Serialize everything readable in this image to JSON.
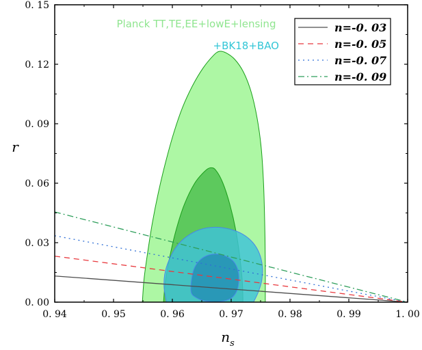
{
  "chart_data": {
    "type": "line",
    "xlabel": "n",
    "xlabel_sub": "s",
    "ylabel": "r",
    "xlim": [
      0.94,
      1.0
    ],
    "ylim": [
      0.0,
      0.15
    ],
    "x_ticks": [
      0.94,
      0.95,
      0.96,
      0.97,
      0.98,
      0.99,
      1.0
    ],
    "x_tick_labels": [
      "0. 94",
      "0. 95",
      "0. 96",
      "0. 97",
      "0. 98",
      "0. 99",
      "1. 00"
    ],
    "y_ticks": [
      0.0,
      0.03,
      0.06,
      0.09,
      0.12,
      0.15
    ],
    "y_tick_labels": [
      "0. 00",
      "0. 03",
      "0. 06",
      "0. 09",
      "0. 12",
      "0. 15"
    ],
    "grid": false,
    "legend_position": "top-right",
    "series": [
      {
        "name": "n=-0. 03",
        "color": "#4d4d4d",
        "dash": "solid",
        "x": [
          0.94,
          1.0
        ],
        "y": [
          0.0132,
          0.0
        ]
      },
      {
        "name": "n=-0. 05",
        "color": "#e8383d",
        "dash": "dashed",
        "x": [
          0.94,
          1.0
        ],
        "y": [
          0.0232,
          0.0
        ]
      },
      {
        "name": "n=-0. 07",
        "color": "#2f6fd6",
        "dash": "dotted",
        "x": [
          0.94,
          1.0
        ],
        "y": [
          0.0335,
          0.0
        ]
      },
      {
        "name": "n=-0. 09",
        "color": "#2e9e5b",
        "dash": "dashdot",
        "x": [
          0.94,
          1.0
        ],
        "y": [
          0.0455,
          0.0
        ]
      }
    ],
    "contours": [
      {
        "name": "Planck TT,TE,EE+lowE+lensing",
        "label_color": "#8fe58f",
        "regions": [
          {
            "level": "95%",
            "fill": "#adf7a4",
            "stroke": "#1a9e1a",
            "points": [
              [
                0.9549,
                0.0
              ],
              [
                0.9552,
                0.012
              ],
              [
                0.9558,
                0.025
              ],
              [
                0.9566,
                0.04
              ],
              [
                0.9576,
                0.055
              ],
              [
                0.9588,
                0.07
              ],
              [
                0.9602,
                0.085
              ],
              [
                0.9617,
                0.098
              ],
              [
                0.9634,
                0.109
              ],
              [
                0.9652,
                0.118
              ],
              [
                0.967,
                0.1245
              ],
              [
                0.968,
                0.1265
              ],
              [
                0.9691,
                0.1258
              ],
              [
                0.9706,
                0.1225
              ],
              [
                0.9721,
                0.116
              ],
              [
                0.9734,
                0.106
              ],
              [
                0.9744,
                0.093
              ],
              [
                0.9751,
                0.078
              ],
              [
                0.9755,
                0.06
              ],
              [
                0.9757,
                0.04
              ],
              [
                0.9758,
                0.02
              ],
              [
                0.9758,
                0.0
              ]
            ]
          },
          {
            "level": "68%",
            "fill": "#5dc95d",
            "stroke": "#1a9e1a",
            "points": [
              [
                0.9585,
                0.0
              ],
              [
                0.9588,
                0.01
              ],
              [
                0.9595,
                0.022
              ],
              [
                0.9606,
                0.036
              ],
              [
                0.962,
                0.049
              ],
              [
                0.9638,
                0.06
              ],
              [
                0.9655,
                0.066
              ],
              [
                0.9665,
                0.0678
              ],
              [
                0.9674,
                0.0665
              ],
              [
                0.9686,
                0.06
              ],
              [
                0.9698,
                0.049
              ],
              [
                0.9708,
                0.036
              ],
              [
                0.9715,
                0.022
              ],
              [
                0.9719,
                0.01
              ],
              [
                0.972,
                0.0
              ]
            ]
          }
        ]
      },
      {
        "name": "+BK18+BAO",
        "label_color": "#33c6d6",
        "regions": [
          {
            "level": "95%",
            "fill": "#3ec2d8",
            "stroke": "#4a86e8",
            "opacity": 0.82,
            "points": [
              [
                0.959,
                0.0
              ],
              [
                0.9586,
                0.007
              ],
              [
                0.9587,
                0.014
              ],
              [
                0.9594,
                0.021
              ],
              [
                0.9607,
                0.028
              ],
              [
                0.9624,
                0.033
              ],
              [
                0.9646,
                0.0365
              ],
              [
                0.9672,
                0.0378
              ],
              [
                0.9698,
                0.0368
              ],
              [
                0.972,
                0.0342
              ],
              [
                0.9737,
                0.03
              ],
              [
                0.9748,
                0.0245
              ],
              [
                0.9753,
                0.018
              ],
              [
                0.9752,
                0.011
              ],
              [
                0.9746,
                0.005
              ],
              [
                0.9738,
                0.0
              ]
            ]
          },
          {
            "level": "68%",
            "fill": "#2590b5",
            "stroke": "#4a86e8",
            "opacity": 0.85,
            "points": [
              [
                0.9632,
                0.005
              ],
              [
                0.9633,
                0.012
              ],
              [
                0.9638,
                0.0175
              ],
              [
                0.9648,
                0.0215
              ],
              [
                0.9662,
                0.0238
              ],
              [
                0.9678,
                0.0242
              ],
              [
                0.9692,
                0.023
              ],
              [
                0.9704,
                0.0205
              ],
              [
                0.9711,
                0.0165
              ],
              [
                0.9713,
                0.0115
              ],
              [
                0.971,
                0.006
              ],
              [
                0.97,
                0.002
              ],
              [
                0.968,
                0.0002
              ],
              [
                0.9657,
                0.0005
              ],
              [
                0.9641,
                0.0022
              ]
            ]
          }
        ]
      }
    ]
  }
}
